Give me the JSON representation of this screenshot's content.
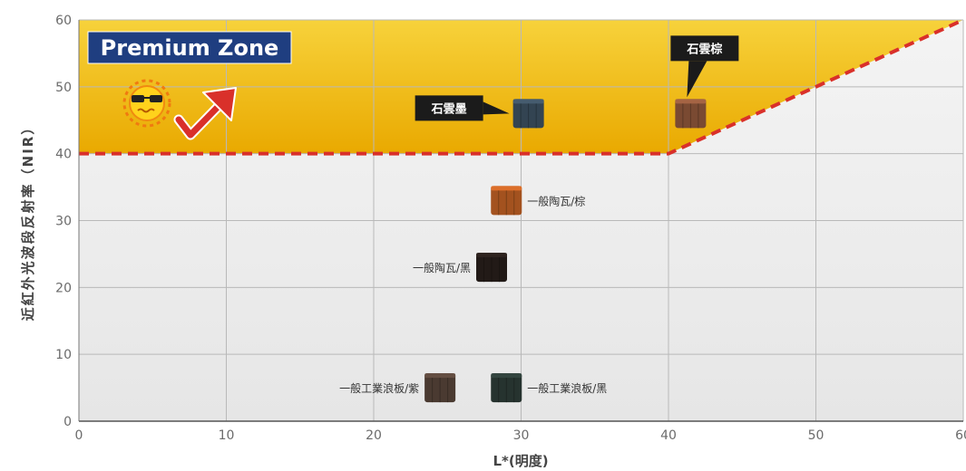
{
  "chart_data": {
    "type": "scatter",
    "xlabel": "L*(明度)",
    "ylabel": "近紅外光波段反射率（NIR）",
    "xlim": [
      0,
      60
    ],
    "ylim": [
      0,
      60
    ],
    "xticks": [
      0,
      10,
      20,
      30,
      40,
      50,
      60
    ],
    "yticks": [
      0,
      10,
      20,
      30,
      40,
      50,
      60
    ],
    "grid": true,
    "zone": {
      "label": "Premium Zone",
      "boundary": [
        [
          0,
          40
        ],
        [
          40,
          40
        ],
        [
          60,
          60
        ]
      ],
      "fill": "#f2c200",
      "line_color": "#d9302a"
    },
    "points": [
      {
        "label": "石雲墨",
        "x": 30.5,
        "y": 46,
        "color": "#334452",
        "callout": true
      },
      {
        "label": "石雲棕",
        "x": 41.5,
        "y": 46,
        "color": "#7a4a32",
        "callout": true
      },
      {
        "label": "一般陶瓦/棕",
        "x": 29,
        "y": 33,
        "color": "#a3521f",
        "callout": false
      },
      {
        "label": "一般陶瓦/黑",
        "x": 28,
        "y": 23,
        "color": "#221a17",
        "callout": false
      },
      {
        "label": "一般工業浪板/黑",
        "x": 29,
        "y": 5,
        "color": "#26332f",
        "callout": false
      },
      {
        "label": "一般工業浪板/紫",
        "x": 24.5,
        "y": 5,
        "color": "#4a3a31",
        "callout": false
      }
    ]
  },
  "icons": {
    "sun": "sun-sunglasses-icon",
    "arrow": "trend-up-arrow-icon"
  }
}
